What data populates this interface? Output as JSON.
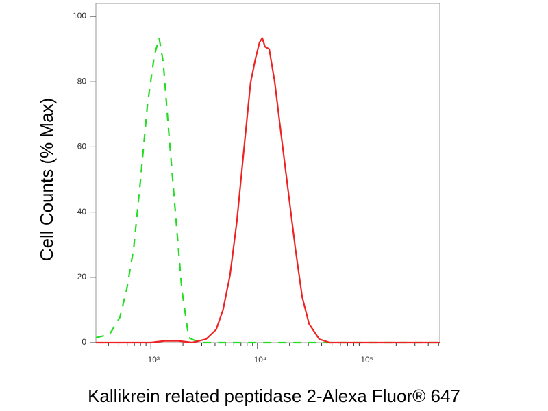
{
  "chart_data": {
    "type": "line",
    "xscale": "log",
    "xlabel": "Kallikrein related peptidase 2-Alexa Fluor® 647",
    "ylabel": "Cell Counts (% Max)",
    "xlim": [
      305,
      513000
    ],
    "ylim": [
      0,
      104
    ],
    "xticks": [
      {
        "value": 1000,
        "label": "10³"
      },
      {
        "value": 10000,
        "label": "10⁴"
      },
      {
        "value": 100000,
        "label": "10⁵"
      }
    ],
    "xminorticks": [
      400,
      500,
      600,
      700,
      800,
      900,
      2000,
      3000,
      4000,
      5000,
      6000,
      7000,
      8000,
      9000,
      20000,
      30000,
      40000,
      50000,
      60000,
      70000,
      80000,
      90000,
      200000,
      300000,
      400000,
      500000
    ],
    "yticks": [
      0,
      20,
      40,
      60,
      80,
      100
    ],
    "series": [
      {
        "color": "#22dd22",
        "dash": true,
        "x": [
          305,
          410,
          513,
          594,
          690,
          800,
          929,
          1077,
          1195,
          1306,
          1450,
          1681,
          1950,
          2265,
          2830,
          14500,
          513000
        ],
        "values": [
          1.5,
          2.5,
          7.8,
          16.3,
          29,
          50,
          73,
          88,
          93.4,
          86,
          67,
          41.6,
          16.3,
          1.5,
          0,
          0,
          0
        ]
      },
      {
        "color": "#ee2222",
        "dash": false,
        "x": [
          305,
          1000,
          1346,
          1812,
          2438,
          3283,
          4100,
          4755,
          5520,
          6400,
          7430,
          8610,
          9570,
          10450,
          11090,
          11770,
          12880,
          14500,
          16820,
          19500,
          22630,
          26240,
          30460,
          38070,
          47550,
          513000
        ],
        "values": [
          0,
          0,
          0.5,
          0.5,
          0,
          1,
          4,
          10,
          20.5,
          37,
          58.6,
          79.7,
          87,
          92,
          93.4,
          90.7,
          90,
          80,
          62.8,
          46,
          29,
          14,
          5.7,
          1,
          0,
          0
        ]
      }
    ]
  }
}
